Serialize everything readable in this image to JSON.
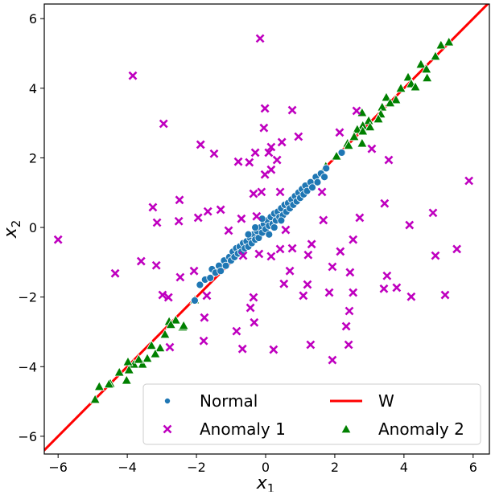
{
  "chart_data": {
    "type": "scatter",
    "title": "",
    "xlabel": "x",
    "xlabel_sub": "1",
    "ylabel": "x",
    "ylabel_sub": "2",
    "xlim": [
      -6.4,
      6.47
    ],
    "ylim": [
      -6.51,
      6.42
    ],
    "xticks": [
      -6,
      -4,
      -2,
      0,
      2,
      4,
      6
    ],
    "yticks": [
      -6,
      -4,
      -2,
      0,
      2,
      4,
      6
    ],
    "grid": false,
    "legend_position": "lower-right",
    "series": [
      {
        "name": "Normal",
        "marker": "circle",
        "color": "#1f77b4",
        "points": [
          [
            -2.05,
            -2.1
          ],
          [
            -1.9,
            -1.65
          ],
          [
            -1.75,
            -1.5
          ],
          [
            -1.6,
            -1.45
          ],
          [
            -1.55,
            -1.2
          ],
          [
            -1.45,
            -1.3
          ],
          [
            -1.35,
            -1.1
          ],
          [
            -1.3,
            -1.25
          ],
          [
            -1.2,
            -0.95
          ],
          [
            -1.15,
            -1.1
          ],
          [
            -1.05,
            -0.85
          ],
          [
            -1.0,
            -0.95
          ],
          [
            -0.95,
            -0.7
          ],
          [
            -0.9,
            -0.85
          ],
          [
            -0.85,
            -0.6
          ],
          [
            -0.8,
            -0.75
          ],
          [
            -0.75,
            -0.55
          ],
          [
            -0.7,
            -0.7
          ],
          [
            -0.65,
            -0.45
          ],
          [
            -0.6,
            -0.6
          ],
          [
            -0.55,
            -0.4
          ],
          [
            -0.5,
            -0.55
          ],
          [
            -0.45,
            -0.3
          ],
          [
            -0.4,
            -0.45
          ],
          [
            -0.35,
            -0.2
          ],
          [
            -0.3,
            -0.35
          ],
          [
            -0.25,
            -0.1
          ],
          [
            -0.2,
            -0.3
          ],
          [
            -0.15,
            0.0
          ],
          [
            -0.1,
            -0.15
          ],
          [
            -0.05,
            0.1
          ],
          [
            0.0,
            -0.05
          ],
          [
            0.05,
            0.2
          ],
          [
            0.1,
            0.05
          ],
          [
            0.15,
            0.3
          ],
          [
            0.2,
            0.1
          ],
          [
            0.25,
            0.4
          ],
          [
            0.3,
            0.2
          ],
          [
            0.35,
            0.45
          ],
          [
            0.4,
            0.3
          ],
          [
            0.45,
            0.55
          ],
          [
            0.5,
            0.35
          ],
          [
            0.55,
            0.65
          ],
          [
            0.6,
            0.45
          ],
          [
            0.65,
            0.7
          ],
          [
            0.7,
            0.55
          ],
          [
            0.75,
            0.8
          ],
          [
            0.8,
            0.65
          ],
          [
            0.85,
            0.9
          ],
          [
            0.9,
            0.75
          ],
          [
            0.95,
            1.0
          ],
          [
            1.0,
            0.85
          ],
          [
            1.05,
            1.1
          ],
          [
            1.1,
            0.95
          ],
          [
            1.15,
            1.2
          ],
          [
            1.2,
            1.05
          ],
          [
            1.3,
            1.3
          ],
          [
            1.35,
            1.15
          ],
          [
            1.45,
            1.45
          ],
          [
            1.5,
            1.3
          ],
          [
            1.6,
            1.55
          ],
          [
            1.7,
            1.45
          ],
          [
            1.75,
            1.7
          ],
          [
            2.2,
            2.15
          ],
          [
            -0.1,
            0.25
          ],
          [
            0.1,
            -0.2
          ],
          [
            0.25,
            0.0
          ],
          [
            -0.3,
            0.0
          ],
          [
            0.45,
            0.2
          ],
          [
            -0.5,
            -0.2
          ]
        ]
      },
      {
        "name": "Anomaly 1",
        "marker": "x",
        "color": "#bf00bf",
        "points": [
          [
            -6.0,
            -0.35
          ],
          [
            -3.84,
            4.36
          ],
          [
            -0.16,
            5.43
          ],
          [
            -2.95,
            2.98
          ],
          [
            -0.02,
            3.42
          ],
          [
            -0.05,
            2.86
          ],
          [
            -1.88,
            2.38
          ],
          [
            -1.49,
            2.12
          ],
          [
            -0.79,
            1.89
          ],
          [
            -0.47,
            1.87
          ],
          [
            -0.3,
            2.15
          ],
          [
            0.09,
            2.15
          ],
          [
            -0.02,
            1.52
          ],
          [
            -0.35,
            0.97
          ],
          [
            -0.12,
            1.02
          ],
          [
            -3.26,
            0.58
          ],
          [
            -2.49,
            0.79
          ],
          [
            -3.14,
            0.14
          ],
          [
            -2.51,
            0.18
          ],
          [
            -1.95,
            0.28
          ],
          [
            -1.67,
            0.46
          ],
          [
            -1.3,
            0.51
          ],
          [
            -0.7,
            0.25
          ],
          [
            -0.26,
            0.32
          ],
          [
            -1.07,
            -0.09
          ],
          [
            0.77,
            3.37
          ],
          [
            2.63,
            3.35
          ],
          [
            0.95,
            2.61
          ],
          [
            2.14,
            2.73
          ],
          [
            0.47,
            2.45
          ],
          [
            0.16,
            2.31
          ],
          [
            0.33,
            1.94
          ],
          [
            0.16,
            1.66
          ],
          [
            3.07,
            2.26
          ],
          [
            3.56,
            1.94
          ],
          [
            5.88,
            1.34
          ],
          [
            0.42,
            1.02
          ],
          [
            1.63,
            1.02
          ],
          [
            3.44,
            0.69
          ],
          [
            4.84,
            0.42
          ],
          [
            1.67,
            0.21
          ],
          [
            2.72,
            0.28
          ],
          [
            4.16,
            0.07
          ],
          [
            0.58,
            -0.07
          ],
          [
            -3.6,
            -0.97
          ],
          [
            -3.16,
            -1.09
          ],
          [
            -4.35,
            -1.32
          ],
          [
            -2.47,
            -1.43
          ],
          [
            -2.07,
            -1.25
          ],
          [
            -0.65,
            -0.81
          ],
          [
            -0.19,
            -0.76
          ],
          [
            -2.98,
            -1.94
          ],
          [
            -2.81,
            -2.01
          ],
          [
            -1.7,
            -1.96
          ],
          [
            -0.35,
            -2.01
          ],
          [
            -0.44,
            -2.31
          ],
          [
            -0.33,
            -2.73
          ],
          [
            -1.77,
            -2.59
          ],
          [
            -0.84,
            -2.98
          ],
          [
            -1.79,
            -3.26
          ],
          [
            -2.77,
            -3.44
          ],
          [
            -0.67,
            -3.49
          ],
          [
            2.53,
            -0.35
          ],
          [
            0.42,
            -0.62
          ],
          [
            0.77,
            -0.6
          ],
          [
            1.33,
            -0.48
          ],
          [
            1.23,
            -0.79
          ],
          [
            2.16,
            -0.69
          ],
          [
            0.16,
            -0.83
          ],
          [
            4.91,
            -0.81
          ],
          [
            5.53,
            -0.62
          ],
          [
            0.7,
            -1.25
          ],
          [
            1.93,
            -1.13
          ],
          [
            2.44,
            -1.29
          ],
          [
            3.51,
            -1.39
          ],
          [
            0.53,
            -1.62
          ],
          [
            1.21,
            -1.64
          ],
          [
            1.09,
            -1.96
          ],
          [
            1.84,
            -1.87
          ],
          [
            2.53,
            -1.87
          ],
          [
            3.42,
            -1.76
          ],
          [
            3.79,
            -1.73
          ],
          [
            4.21,
            -1.99
          ],
          [
            5.19,
            -1.94
          ],
          [
            2.42,
            -2.4
          ],
          [
            2.33,
            -2.84
          ],
          [
            2.4,
            -3.37
          ],
          [
            1.3,
            -3.37
          ],
          [
            0.23,
            -3.51
          ],
          [
            1.93,
            -3.81
          ]
        ]
      },
      {
        "name": "Anomaly 2",
        "marker": "triangle",
        "color": "#008000",
        "points": [
          [
            5.3,
            5.33
          ],
          [
            5.07,
            5.24
          ],
          [
            4.91,
            4.92
          ],
          [
            4.49,
            4.69
          ],
          [
            4.65,
            4.55
          ],
          [
            4.67,
            4.3
          ],
          [
            4.12,
            4.32
          ],
          [
            4.21,
            4.13
          ],
          [
            4.33,
            4.04
          ],
          [
            3.91,
            4.0
          ],
          [
            3.49,
            3.74
          ],
          [
            3.77,
            3.67
          ],
          [
            3.6,
            3.58
          ],
          [
            3.37,
            3.46
          ],
          [
            3.33,
            3.26
          ],
          [
            3.26,
            3.12
          ],
          [
            2.98,
            3.07
          ],
          [
            2.81,
            2.93
          ],
          [
            3.02,
            2.89
          ],
          [
            2.79,
            3.3
          ],
          [
            2.65,
            2.82
          ],
          [
            2.81,
            2.77
          ],
          [
            2.56,
            2.61
          ],
          [
            2.79,
            2.42
          ],
          [
            2.37,
            2.42
          ],
          [
            2.4,
            2.36
          ],
          [
            2.05,
            2.05
          ],
          [
            1.74,
            1.76
          ],
          [
            -2.05,
            -2.08
          ],
          [
            -2.4,
            -2.86
          ],
          [
            -2.79,
            -2.7
          ],
          [
            -2.6,
            -2.66
          ],
          [
            -2.91,
            -3.07
          ],
          [
            -3.3,
            -3.39
          ],
          [
            -3.05,
            -3.46
          ],
          [
            -3.42,
            -3.76
          ],
          [
            -3.56,
            -3.93
          ],
          [
            -3.81,
            -3.93
          ],
          [
            -3.98,
            -3.86
          ],
          [
            -4.02,
            -4.39
          ],
          [
            -4.23,
            -4.16
          ],
          [
            -4.49,
            -4.48
          ],
          [
            -4.81,
            -4.57
          ],
          [
            -4.93,
            -4.94
          ],
          [
            -4.53,
            -4.5
          ],
          [
            -3.95,
            -4.09
          ],
          [
            -3.67,
            -3.79
          ],
          [
            -3.19,
            -3.63
          ],
          [
            -2.74,
            -2.79
          ],
          [
            -2.37,
            -2.82
          ]
        ]
      },
      {
        "name": "W",
        "marker": "line",
        "color": "#ff0000",
        "points": [
          [
            -6.5,
            -6.5
          ],
          [
            6.5,
            6.5
          ]
        ]
      }
    ],
    "legend": [
      {
        "label": "Normal",
        "series": 0
      },
      {
        "label": "Anomaly 1",
        "series": 1
      },
      {
        "label": "W",
        "series": 3
      },
      {
        "label": "Anomaly 2",
        "series": 2
      }
    ]
  }
}
